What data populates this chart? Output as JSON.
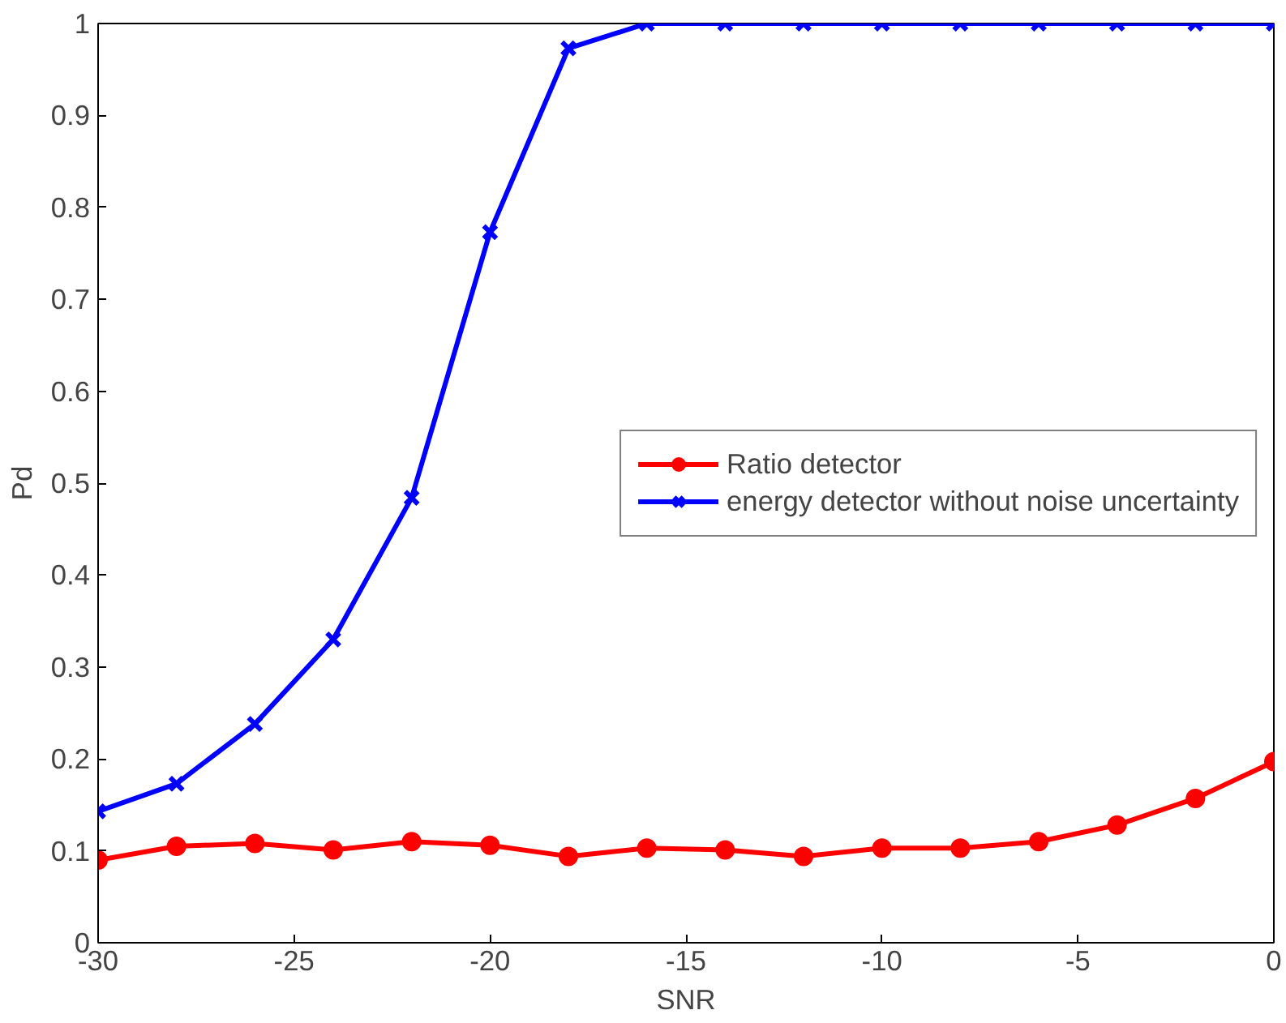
{
  "chart_data": {
    "type": "line",
    "xlabel": "SNR",
    "ylabel": "Pd",
    "x": [
      -30,
      -28,
      -26,
      -24,
      -22,
      -20,
      -18,
      -16,
      -14,
      -12,
      -10,
      -8,
      -6,
      -4,
      -2,
      0
    ],
    "series": [
      {
        "name": "Ratio detector",
        "color": "#ff0000",
        "marker": "circle",
        "values": [
          0.09,
          0.105,
          0.108,
          0.101,
          0.11,
          0.106,
          0.094,
          0.103,
          0.101,
          0.094,
          0.103,
          0.103,
          0.11,
          0.128,
          0.157,
          0.197
        ]
      },
      {
        "name": "energy detector without noise uncertainty",
        "color": "#0000ff",
        "marker": "cross",
        "values": [
          0.143,
          0.173,
          0.238,
          0.33,
          0.484,
          0.773,
          0.973,
          1,
          1,
          1,
          1,
          1,
          1,
          1,
          1,
          1
        ]
      }
    ],
    "xlim": [
      -30,
      0
    ],
    "xticks": [
      -30,
      -25,
      -20,
      -15,
      -10,
      -5,
      0
    ],
    "ylim": [
      0,
      1
    ],
    "yticks": [
      0,
      0.1,
      0.2,
      0.3,
      0.4,
      0.5,
      0.6,
      0.7,
      0.8,
      0.9,
      1
    ],
    "grid": false,
    "legend": "right",
    "line_style": "solid"
  }
}
